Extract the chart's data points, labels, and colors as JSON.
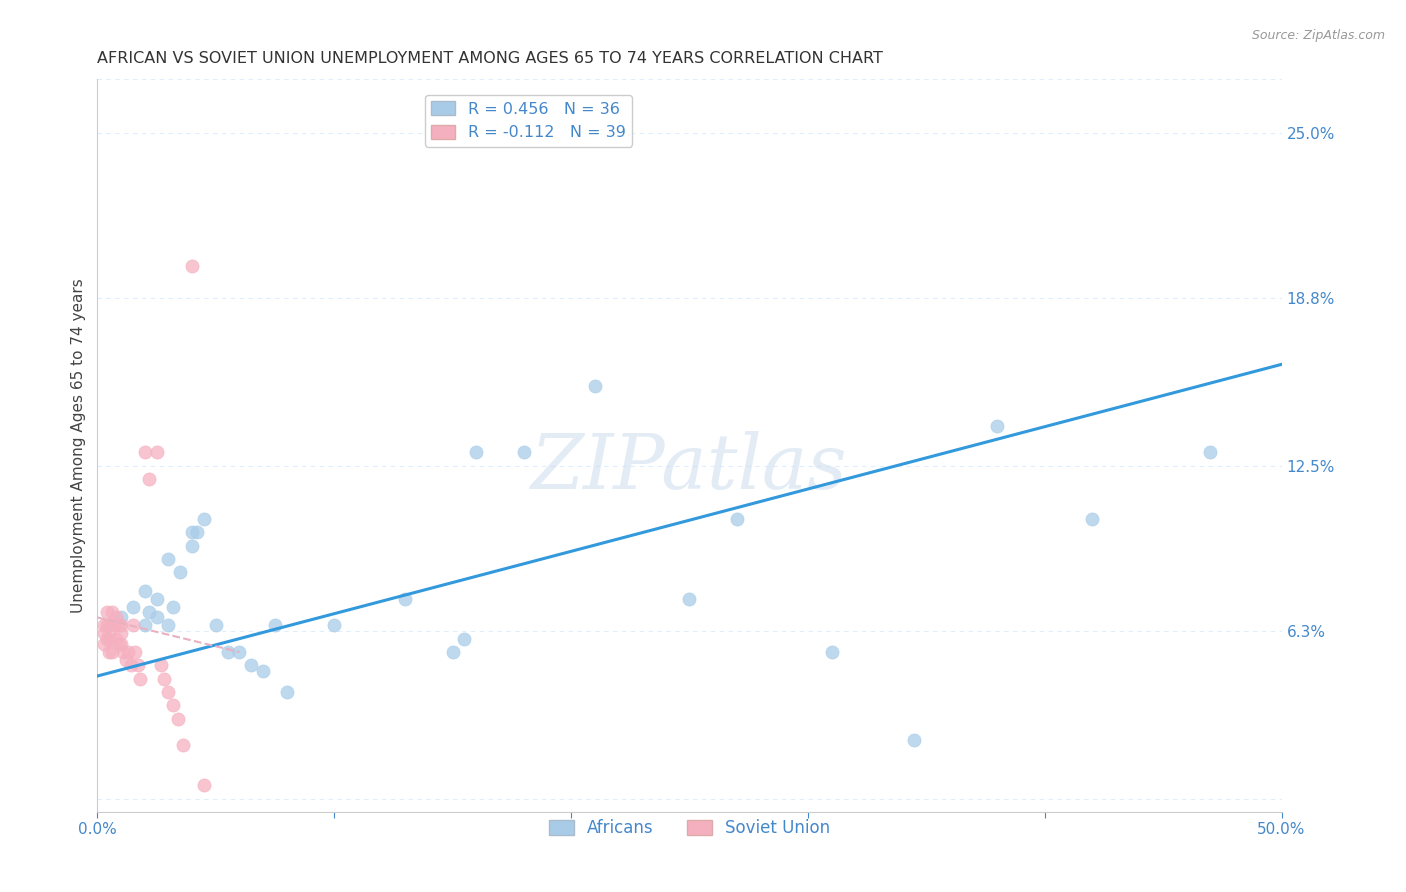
{
  "title": "AFRICAN VS SOVIET UNION UNEMPLOYMENT AMONG AGES 65 TO 74 YEARS CORRELATION CHART",
  "source": "Source: ZipAtlas.com",
  "ylabel": "Unemployment Among Ages 65 to 74 years",
  "xlim": [
    0.0,
    0.5
  ],
  "ylim": [
    -0.005,
    0.27
  ],
  "xticks": [
    0.0,
    0.1,
    0.2,
    0.3,
    0.4,
    0.5
  ],
  "xticklabels": [
    "0.0%",
    "",
    "",
    "",
    "",
    "50.0%"
  ],
  "ytick_positions": [
    0.0,
    0.063,
    0.125,
    0.188,
    0.25
  ],
  "yticklabels": [
    "",
    "6.3%",
    "12.5%",
    "18.8%",
    "25.0%"
  ],
  "africans_x": [
    0.01,
    0.015,
    0.02,
    0.02,
    0.022,
    0.025,
    0.025,
    0.03,
    0.03,
    0.032,
    0.035,
    0.04,
    0.04,
    0.042,
    0.045,
    0.05,
    0.055,
    0.06,
    0.065,
    0.07,
    0.075,
    0.08,
    0.1,
    0.13,
    0.15,
    0.155,
    0.16,
    0.18,
    0.21,
    0.25,
    0.27,
    0.31,
    0.345,
    0.38,
    0.42,
    0.47
  ],
  "africans_y": [
    0.068,
    0.072,
    0.065,
    0.078,
    0.07,
    0.075,
    0.068,
    0.09,
    0.065,
    0.072,
    0.085,
    0.1,
    0.095,
    0.1,
    0.105,
    0.065,
    0.055,
    0.055,
    0.05,
    0.048,
    0.065,
    0.04,
    0.065,
    0.075,
    0.055,
    0.06,
    0.13,
    0.13,
    0.155,
    0.075,
    0.105,
    0.055,
    0.022,
    0.14,
    0.105,
    0.13
  ],
  "soviet_x": [
    0.003,
    0.003,
    0.003,
    0.004,
    0.004,
    0.004,
    0.005,
    0.005,
    0.005,
    0.005,
    0.006,
    0.006,
    0.007,
    0.008,
    0.008,
    0.009,
    0.009,
    0.01,
    0.01,
    0.01,
    0.011,
    0.012,
    0.013,
    0.014,
    0.015,
    0.016,
    0.017,
    0.018,
    0.02,
    0.022,
    0.025,
    0.027,
    0.028,
    0.03,
    0.032,
    0.034,
    0.036,
    0.04,
    0.045
  ],
  "soviet_y": [
    0.065,
    0.062,
    0.058,
    0.07,
    0.065,
    0.06,
    0.065,
    0.062,
    0.06,
    0.055,
    0.07,
    0.055,
    0.065,
    0.068,
    0.06,
    0.065,
    0.058,
    0.065,
    0.062,
    0.058,
    0.055,
    0.052,
    0.055,
    0.05,
    0.065,
    0.055,
    0.05,
    0.045,
    0.13,
    0.12,
    0.13,
    0.05,
    0.045,
    0.04,
    0.035,
    0.03,
    0.02,
    0.2,
    0.005
  ],
  "africans_color": "#a8cce8",
  "soviet_color": "#f5b0c0",
  "africans_line_color": "#3399dd",
  "soviet_line_color": "#e8b0c0",
  "legend_africans_R": "R = 0.456",
  "legend_africans_N": "N = 36",
  "legend_soviet_R": "R = -0.112",
  "legend_soviet_N": "N = 39",
  "tick_color": "#4488cc",
  "grid_color": "#ddeeff",
  "watermark": "ZIPatlas",
  "title_color": "#333333",
  "ylabel_color": "#444444",
  "source_color": "#999999",
  "background_color": "#ffffff",
  "africans_trend_x0": 0.0,
  "africans_trend_y0": 0.046,
  "africans_trend_x1": 0.5,
  "africans_trend_y1": 0.163,
  "soviet_trend_x0": 0.0,
  "soviet_trend_y0": 0.068,
  "soviet_trend_x1": 0.06,
  "soviet_trend_y1": 0.055
}
